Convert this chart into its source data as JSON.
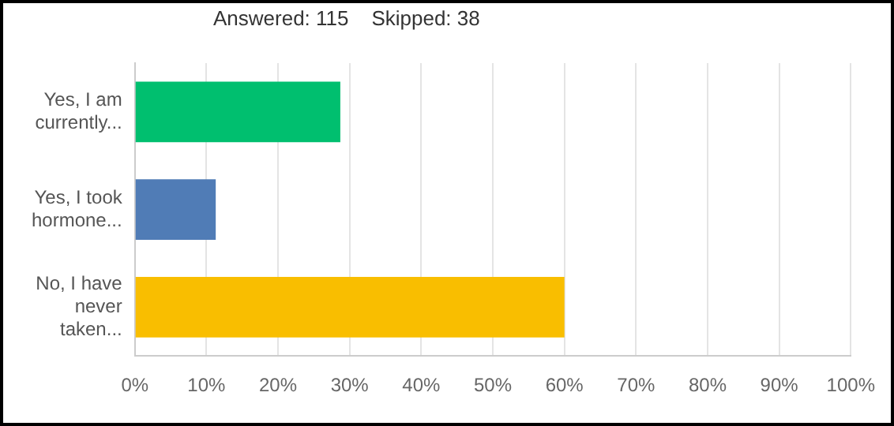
{
  "chart_data": {
    "type": "bar",
    "orientation": "horizontal",
    "subtitle": "Answered: 115    Skipped: 38",
    "categories": [
      "Yes, I am currently...",
      "Yes, I took hormone...",
      "No, I have never taken..."
    ],
    "values": [
      28.7,
      11.3,
      60
    ],
    "colors": [
      "#00bf6f",
      "#507cb6",
      "#f9be00"
    ],
    "xlim": [
      0,
      100
    ],
    "xticks": [
      {
        "value": 0,
        "label": "0%"
      },
      {
        "value": 10,
        "label": "10%"
      },
      {
        "value": 20,
        "label": "20%"
      },
      {
        "value": 30,
        "label": "30%"
      },
      {
        "value": 40,
        "label": "40%"
      },
      {
        "value": 50,
        "label": "50%"
      },
      {
        "value": 60,
        "label": "60%"
      },
      {
        "value": 70,
        "label": "70%"
      },
      {
        "value": 80,
        "label": "80%"
      },
      {
        "value": 90,
        "label": "90%"
      },
      {
        "value": 100,
        "label": "100%"
      }
    ],
    "grid": "x",
    "legend": false
  }
}
